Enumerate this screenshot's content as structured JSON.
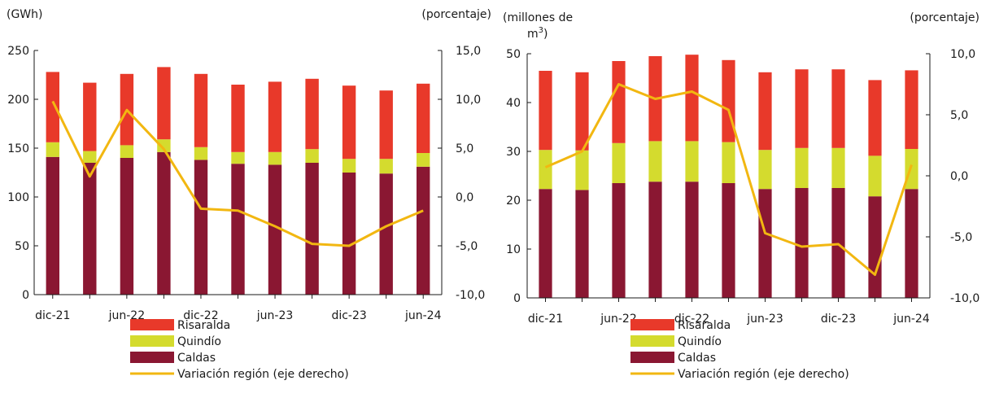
{
  "colors": {
    "risaralda": "#e8392a",
    "quindio": "#d4db2e",
    "caldas": "#8a1732",
    "variacion": "#f2b711"
  },
  "chart_data": [
    {
      "type": "bar",
      "stacked": true,
      "left_unit": "(GWh)",
      "right_unit": "(porcentaje)",
      "xticks": [
        "dic-21",
        "jun-22",
        "dic-22",
        "jun-23",
        "dic-23",
        "jun-24"
      ],
      "n_bars": 11,
      "ylim_left": [
        0,
        250
      ],
      "yticks_left": [
        "0",
        "50",
        "100",
        "150",
        "200",
        "250"
      ],
      "ylim_right": [
        -10,
        15
      ],
      "yticks_right": [
        "-10,0",
        "-5,0",
        "0,0",
        "5,0",
        "10,0",
        "15,0"
      ],
      "series": [
        {
          "name": "Caldas",
          "values": [
            141,
            135,
            140,
            146,
            138,
            134,
            133,
            135,
            125,
            124,
            131
          ]
        },
        {
          "name": "Quindío",
          "values": [
            15,
            12,
            13,
            13,
            13,
            12,
            13,
            14,
            14,
            15,
            14
          ]
        },
        {
          "name": "Risaralda",
          "values": [
            72,
            70,
            73,
            74,
            75,
            69,
            72,
            72,
            75,
            70,
            71
          ]
        }
      ],
      "line": {
        "name": "Variación región (eje derecho)",
        "axis": "right",
        "values": [
          9.8,
          2.1,
          8.9,
          4.9,
          -1.2,
          -1.4,
          -3.0,
          -4.8,
          -5.0,
          -3.0,
          -1.4
        ]
      },
      "legend": [
        "Risaralda",
        "Quindío",
        "Caldas",
        "Variación región (eje derecho)"
      ]
    },
    {
      "type": "bar",
      "stacked": true,
      "left_unit": "(millones de m³)",
      "right_unit": "(porcentaje)",
      "xticks": [
        "dic-21",
        "jun-22",
        "dic-22",
        "jun-23",
        "dic-23",
        "jun-24"
      ],
      "n_bars": 11,
      "ylim_left": [
        0,
        50
      ],
      "yticks_left": [
        "0",
        "10",
        "20",
        "30",
        "40",
        "50"
      ],
      "ylim_right": [
        -10,
        10
      ],
      "yticks_right": [
        "-10,0",
        "-5,0",
        "0,0",
        "5,0",
        "10,0"
      ],
      "series": [
        {
          "name": "Caldas",
          "values": [
            22.3,
            22.1,
            23.5,
            23.8,
            23.8,
            23.5,
            22.3,
            22.5,
            22.5,
            20.8,
            22.3
          ]
        },
        {
          "name": "Quindío",
          "values": [
            8.0,
            8.1,
            8.2,
            8.3,
            8.3,
            8.4,
            8.0,
            8.2,
            8.2,
            8.3,
            8.2
          ]
        },
        {
          "name": "Risaralda",
          "values": [
            16.2,
            16.0,
            16.8,
            17.4,
            17.7,
            16.8,
            15.9,
            16.1,
            16.1,
            15.5,
            16.1
          ]
        }
      ],
      "line": {
        "name": "Variación región (eje derecho)",
        "axis": "right",
        "values": [
          0.7,
          2.0,
          7.5,
          6.3,
          6.9,
          5.4,
          -4.7,
          -5.8,
          -5.6,
          -8.1,
          0.9
        ]
      },
      "legend": [
        "Risaralda",
        "Quindío",
        "Caldas",
        "Variación región (eje derecho)"
      ]
    }
  ]
}
